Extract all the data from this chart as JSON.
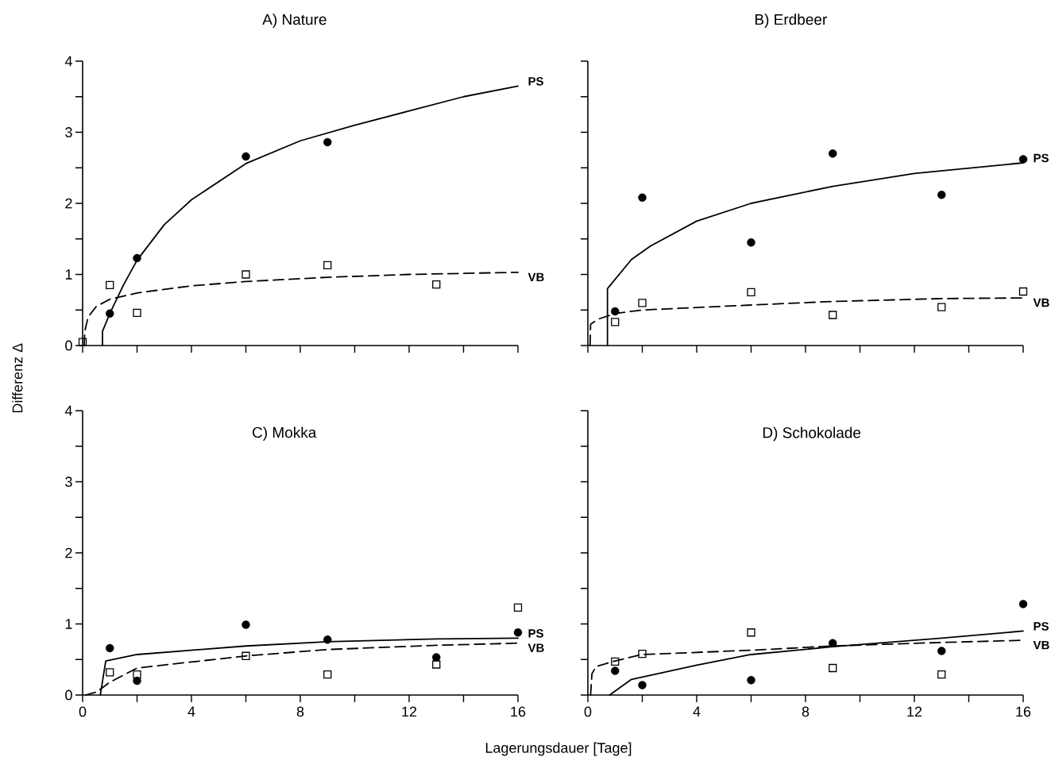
{
  "chart_data": [
    {
      "type": "line",
      "title": "A) Nature",
      "xlim": [
        0,
        16
      ],
      "ylim": [
        0,
        4
      ],
      "tick_labels": "y",
      "xticks": [
        {
          "value": 0,
          "label": null
        },
        {
          "value": 2,
          "label": null
        },
        {
          "value": 4,
          "label": null
        },
        {
          "value": 6,
          "label": null
        },
        {
          "value": 8,
          "label": null
        },
        {
          "value": 10,
          "label": null
        },
        {
          "value": 12,
          "label": null
        },
        {
          "value": 14,
          "label": null
        },
        {
          "value": 16,
          "label": null
        }
      ],
      "yticks": [
        0,
        {
          "value": 0.5,
          "label": null
        },
        1,
        {
          "value": 1.5,
          "label": null
        },
        2,
        {
          "value": 2.5,
          "label": null
        },
        3,
        {
          "value": 3.5,
          "label": null
        },
        4
      ],
      "series": [
        {
          "name": "PS",
          "color": "#000000",
          "line_style": "solid",
          "marker": "none",
          "x": [
            0.73,
            0.73,
            1,
            1.5,
            2,
            3,
            4,
            6,
            8,
            10,
            12,
            14,
            16
          ],
          "values": [
            0,
            0.2,
            0.45,
            0.85,
            1.2,
            1.7,
            2.05,
            2.56,
            2.88,
            3.1,
            3.3,
            3.5,
            3.65
          ]
        },
        {
          "name": "VB",
          "color": "#000000",
          "line_style": "dashed",
          "marker": "none",
          "x": [
            0.06,
            0.08,
            0.2,
            0.5,
            1,
            2,
            4,
            6,
            9,
            12,
            16
          ],
          "values": [
            0,
            0.2,
            0.4,
            0.55,
            0.65,
            0.74,
            0.84,
            0.9,
            0.96,
            1.0,
            1.03
          ]
        },
        {
          "type": "scatter",
          "color": "#000000",
          "marker": "circle",
          "x": [
            1,
            2,
            6,
            9
          ],
          "values": [
            0.45,
            1.23,
            2.66,
            2.86
          ]
        },
        {
          "type": "scatter",
          "color": "#000000",
          "marker": "square",
          "x": [
            0,
            1,
            2,
            6,
            9,
            13
          ],
          "values": [
            0.05,
            0.85,
            0.46,
            1.0,
            1.13,
            0.86
          ]
        }
      ]
    },
    {
      "type": "line",
      "title": "B) Erdbeer",
      "xlim": [
        0,
        16
      ],
      "ylim": [
        0,
        4
      ],
      "tick_labels": false,
      "xticks": [
        {
          "value": 0,
          "label": null
        },
        {
          "value": 2,
          "label": null
        },
        {
          "value": 4,
          "label": null
        },
        {
          "value": 6,
          "label": null
        },
        {
          "value": 8,
          "label": null
        },
        {
          "value": 10,
          "label": null
        },
        {
          "value": 12,
          "label": null
        },
        {
          "value": 14,
          "label": null
        },
        {
          "value": 16,
          "label": null
        }
      ],
      "yticks": [
        {
          "value": 0,
          "label": null
        },
        {
          "value": 0.5,
          "label": null
        },
        {
          "value": 1,
          "label": null
        },
        {
          "value": 1.5,
          "label": null
        },
        {
          "value": 2,
          "label": null
        },
        {
          "value": 2.5,
          "label": null
        },
        {
          "value": 3,
          "label": null
        },
        {
          "value": 3.5,
          "label": null
        },
        {
          "value": 4,
          "label": null
        }
      ],
      "series": [
        {
          "name": "PS",
          "color": "#000000",
          "line_style": "solid",
          "marker": "none",
          "x": [
            0.72,
            0.72,
            1.6,
            2.3,
            4,
            6,
            9,
            12,
            16
          ],
          "values": [
            0,
            0.8,
            1.21,
            1.4,
            1.75,
            2.0,
            2.24,
            2.42,
            2.57
          ]
        },
        {
          "name": "VB",
          "color": "#000000",
          "line_style": "dashed",
          "marker": "none",
          "x": [
            0.08,
            0.1,
            0.37,
            1,
            2,
            6,
            9,
            13,
            16
          ],
          "values": [
            0,
            0.3,
            0.37,
            0.45,
            0.5,
            0.57,
            0.62,
            0.66,
            0.67
          ]
        },
        {
          "type": "scatter",
          "color": "#000000",
          "marker": "circle",
          "x": [
            1,
            2,
            6,
            9,
            13,
            16
          ],
          "values": [
            0.48,
            2.08,
            1.45,
            2.7,
            2.12,
            2.62
          ]
        },
        {
          "type": "scatter",
          "color": "#000000",
          "marker": "square",
          "x": [
            1,
            2,
            6,
            9,
            13,
            16
          ],
          "values": [
            0.33,
            0.6,
            0.75,
            0.43,
            0.54,
            0.76
          ]
        }
      ]
    },
    {
      "type": "line",
      "title": "C) Mokka",
      "xlabel": "Lagerungsdauer [Tage]",
      "ylabel": "Differenz Δ",
      "xlim": [
        0,
        16
      ],
      "ylim": [
        0,
        4
      ],
      "xticks": [
        0,
        {
          "value": 2,
          "label": null
        },
        4,
        {
          "value": 6,
          "label": null
        },
        8,
        {
          "value": 10,
          "label": null
        },
        12,
        {
          "value": 14,
          "label": null
        },
        16
      ],
      "yticks": [
        0,
        {
          "value": 0.5,
          "label": null
        },
        1,
        {
          "value": 1.5,
          "label": null
        },
        2,
        {
          "value": 2.5,
          "label": null
        },
        3,
        {
          "value": 3.5,
          "label": null
        },
        4
      ],
      "series": [
        {
          "name": "PS",
          "color": "#000000",
          "line_style": "solid",
          "marker": "none",
          "x": [
            0.65,
            0.85,
            2,
            6,
            9,
            13,
            16
          ],
          "values": [
            0,
            0.48,
            0.57,
            0.69,
            0.75,
            0.79,
            0.8
          ]
        },
        {
          "name": "VB",
          "color": "#000000",
          "line_style": "dashed",
          "marker": "none",
          "x": [
            0.1,
            0.5,
            1,
            2,
            6,
            9,
            13,
            16
          ],
          "values": [
            0,
            0.04,
            0.18,
            0.38,
            0.55,
            0.64,
            0.7,
            0.73
          ]
        },
        {
          "type": "scatter",
          "color": "#000000",
          "marker": "circle",
          "x": [
            1,
            2,
            6,
            9,
            13,
            16
          ],
          "values": [
            0.66,
            0.2,
            0.99,
            0.78,
            0.53,
            0.88
          ]
        },
        {
          "type": "scatter",
          "color": "#000000",
          "marker": "square",
          "x": [
            1,
            2,
            6,
            9,
            13,
            16
          ],
          "values": [
            0.32,
            0.29,
            0.55,
            0.29,
            0.43,
            1.23
          ]
        }
      ]
    },
    {
      "type": "line",
      "title": "D) Schokolade",
      "xlim": [
        0,
        16
      ],
      "ylim": [
        0,
        4
      ],
      "tick_labels": "x",
      "xticks": [
        0,
        {
          "value": 2,
          "label": null
        },
        4,
        {
          "value": 6,
          "label": null
        },
        8,
        {
          "value": 10,
          "label": null
        },
        12,
        {
          "value": 14,
          "label": null
        },
        16
      ],
      "yticks": [
        {
          "value": 0,
          "label": null
        },
        {
          "value": 0.5,
          "label": null
        },
        {
          "value": 1,
          "label": null
        },
        {
          "value": 1.5,
          "label": null
        },
        {
          "value": 2,
          "label": null
        },
        {
          "value": 2.5,
          "label": null
        },
        {
          "value": 3,
          "label": null
        },
        {
          "value": 3.5,
          "label": null
        },
        {
          "value": 4,
          "label": null
        }
      ],
      "series": [
        {
          "name": "PS",
          "color": "#000000",
          "line_style": "solid",
          "marker": "none",
          "x": [
            0.8,
            1.6,
            4,
            6,
            9,
            13,
            16
          ],
          "values": [
            0,
            0.22,
            0.42,
            0.57,
            0.68,
            0.8,
            0.9
          ]
        },
        {
          "name": "VB",
          "color": "#000000",
          "line_style": "dashed",
          "marker": "none",
          "x": [
            0.1,
            0.15,
            0.3,
            1,
            2,
            6,
            9,
            13,
            16
          ],
          "values": [
            0,
            0.3,
            0.4,
            0.48,
            0.57,
            0.63,
            0.69,
            0.74,
            0.77
          ]
        },
        {
          "type": "scatter",
          "color": "#000000",
          "marker": "circle",
          "x": [
            1,
            2,
            6,
            9,
            13,
            16
          ],
          "values": [
            0.34,
            0.14,
            0.21,
            0.73,
            0.62,
            1.28
          ]
        },
        {
          "type": "scatter",
          "color": "#000000",
          "marker": "square",
          "x": [
            1,
            2,
            6,
            9,
            13
          ],
          "values": [
            0.47,
            0.58,
            0.88,
            0.38,
            0.29
          ]
        }
      ]
    }
  ]
}
